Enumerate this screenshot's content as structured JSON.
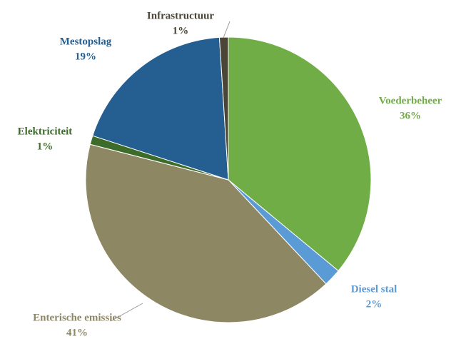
{
  "chart_data": {
    "type": "pie",
    "categories": [
      "Voederbeheer",
      "Diesel stal",
      "Enterische emissies",
      "Elektriciteit",
      "Mestopslag",
      "Infrastructuur"
    ],
    "values": [
      36,
      2,
      41,
      1,
      19,
      1
    ],
    "value_labels": [
      "36%",
      "2%",
      "41%",
      "1%",
      "19%",
      "1%"
    ],
    "colors": [
      "#70ad47",
      "#5b9bd5",
      "#8e8764",
      "#3d6b2a",
      "#255e91",
      "#4a4536"
    ],
    "label_colors": [
      "#70ad47",
      "#5b9bd5",
      "#8e8764",
      "#3d6b2a",
      "#255e91",
      "#4a4536"
    ]
  }
}
